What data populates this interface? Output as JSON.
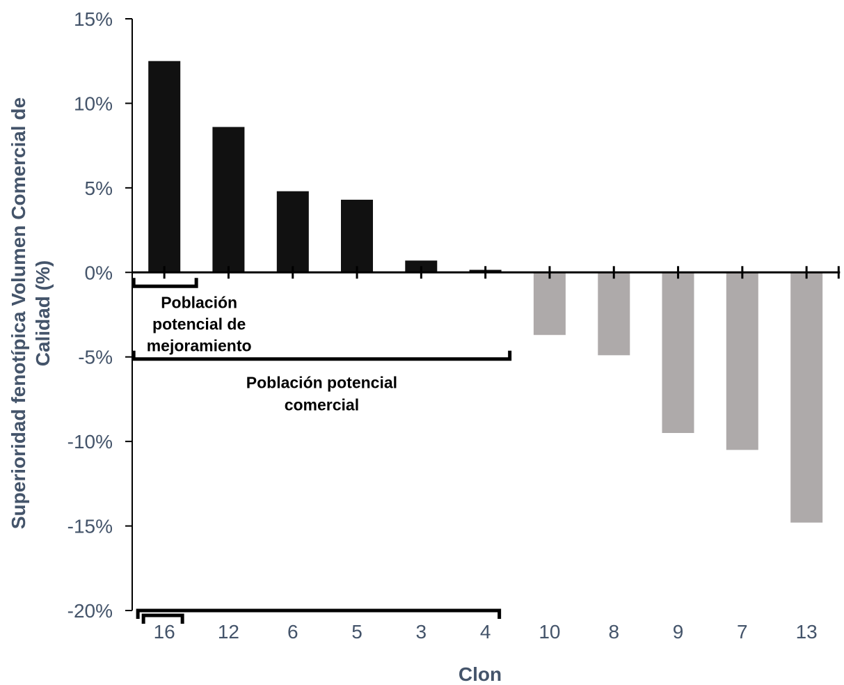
{
  "chart_data": {
    "type": "bar",
    "categories": [
      "16",
      "12",
      "6",
      "5",
      "3",
      "4",
      "10",
      "8",
      "9",
      "7",
      "13"
    ],
    "values": [
      12.5,
      8.6,
      4.8,
      4.3,
      0.7,
      0.15,
      -3.7,
      -4.9,
      -9.5,
      -10.5,
      -14.8
    ],
    "ylim": [
      -20,
      15
    ],
    "yticks": [
      15,
      10,
      5,
      0,
      -5,
      -10,
      -15,
      -20
    ],
    "ytick_labels": [
      "15%",
      "10%",
      "5%",
      "0%",
      "-5%",
      "-10%",
      "-15%",
      "-20%"
    ],
    "xlabel": "Clon",
    "ylabel_line1": "Superioridad fenotípica Volumen Comercial de",
    "ylabel_line2": "Calidad (%)",
    "grid": false,
    "legend": "none",
    "colors": {
      "positive": "#111111",
      "negative": "#aeaaaa",
      "axis": "#000000",
      "text": "#44546a"
    },
    "annotations": [
      {
        "lines": [
          "Población",
          "potencial de",
          "mejoramiento"
        ],
        "bracket_from": "16",
        "bracket_to": "16"
      },
      {
        "lines": [
          "Población potencial",
          "comercial"
        ],
        "bracket_from": "16",
        "bracket_to": "4"
      }
    ]
  }
}
